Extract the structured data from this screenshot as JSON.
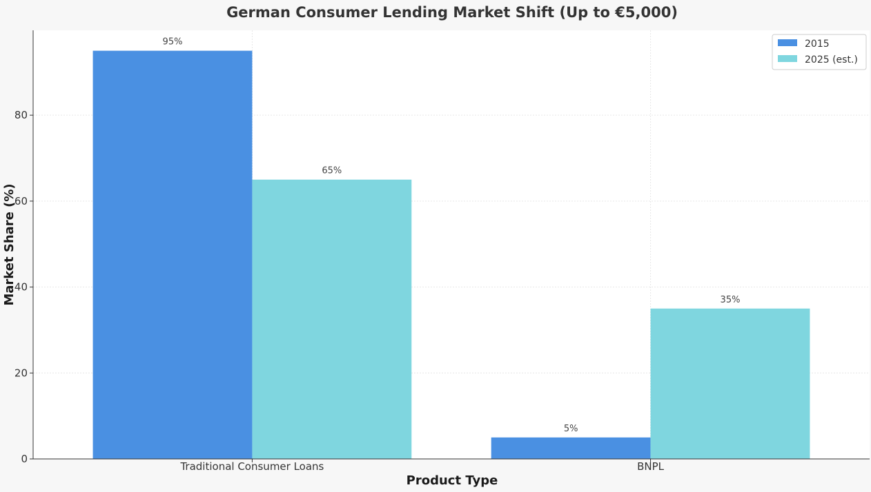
{
  "chart_data": {
    "type": "bar",
    "title": "German Consumer Lending Market Shift (Up to €5,000)",
    "xlabel": "Product Type",
    "ylabel": "Market Share (%)",
    "categories": [
      "Traditional Consumer Loans",
      "BNPL"
    ],
    "series": [
      {
        "name": "2015",
        "values": [
          95,
          5
        ],
        "labels": [
          "95%",
          "5%"
        ],
        "color": "#4a90e2"
      },
      {
        "name": "2025 (est.)",
        "values": [
          65,
          35
        ],
        "labels": [
          "65%",
          "35%"
        ],
        "color": "#7fd6df"
      }
    ],
    "ylim": [
      0,
      99.75
    ],
    "yticks": [
      0,
      20,
      40,
      60,
      80
    ],
    "grid": true,
    "legend": "top-right"
  }
}
